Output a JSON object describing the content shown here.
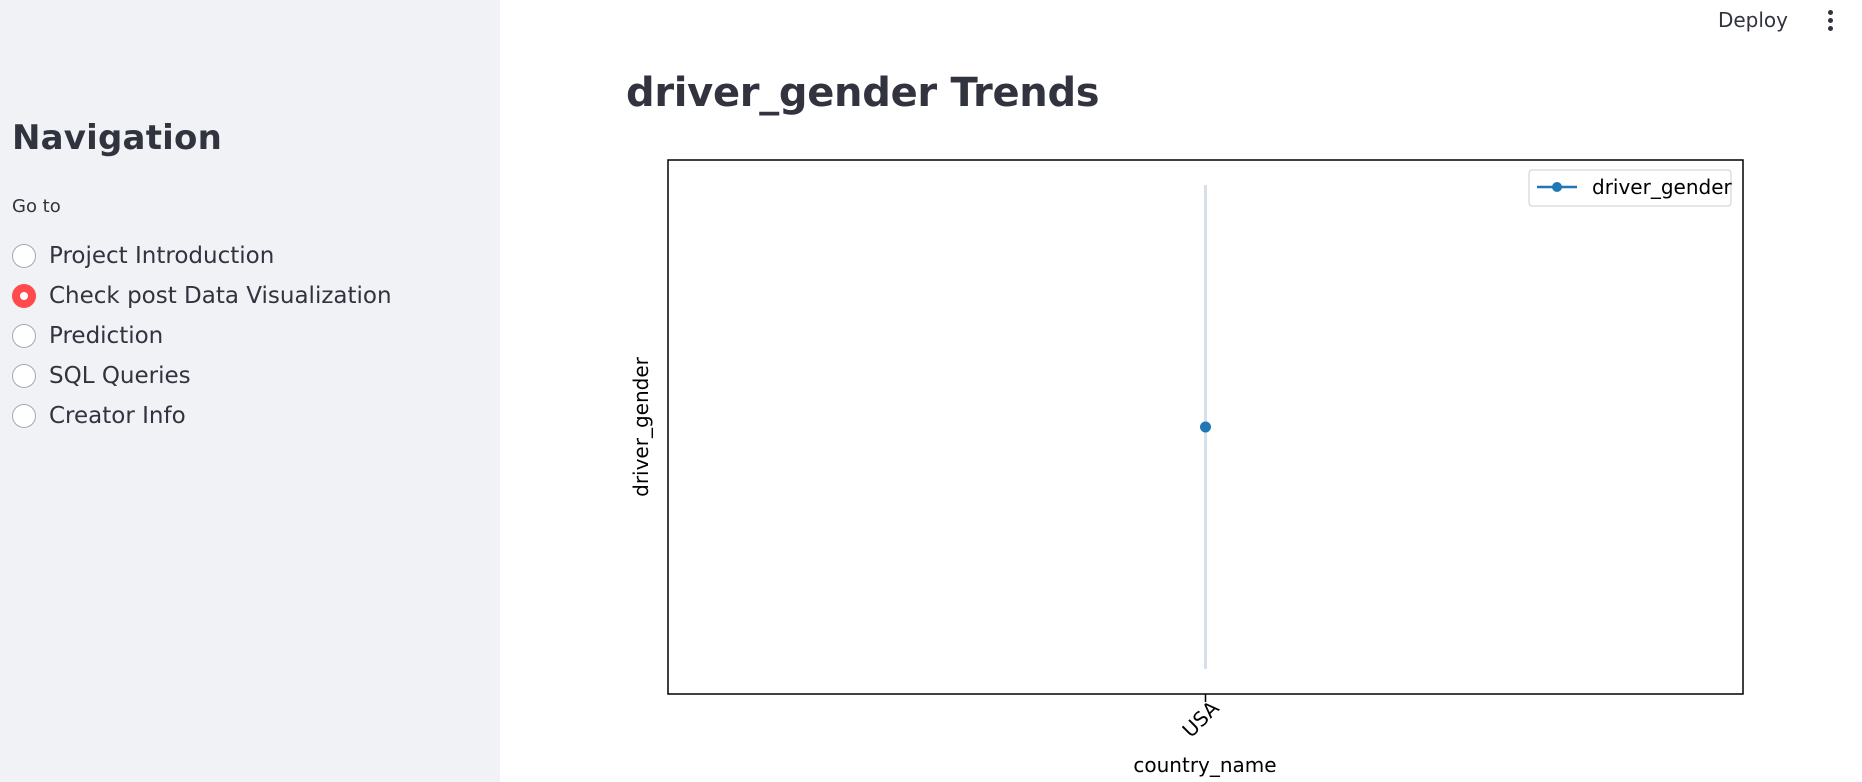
{
  "header": {
    "deploy_label": "Deploy",
    "menu_icon": "kebab-menu-icon"
  },
  "sidebar": {
    "title": "Navigation",
    "radio_label": "Go to",
    "selected_index": 1,
    "items": [
      {
        "label": "Project Introduction"
      },
      {
        "label": "Check post Data Visualization"
      },
      {
        "label": "Prediction"
      },
      {
        "label": "SQL Queries"
      },
      {
        "label": "Creator Info"
      }
    ]
  },
  "main": {
    "title": "driver_gender Trends"
  },
  "colors": {
    "sidebar_bg": "#f0f2f6",
    "accent": "#ff4b4b",
    "series": "#1f77b4"
  },
  "chart_data": {
    "type": "line",
    "xlabel": "country_name",
    "ylabel": "driver_gender",
    "categories": [
      "USA"
    ],
    "series": [
      {
        "name": "driver_gender",
        "values": [
          1
        ]
      }
    ],
    "legend": "top-right",
    "grid": false
  }
}
